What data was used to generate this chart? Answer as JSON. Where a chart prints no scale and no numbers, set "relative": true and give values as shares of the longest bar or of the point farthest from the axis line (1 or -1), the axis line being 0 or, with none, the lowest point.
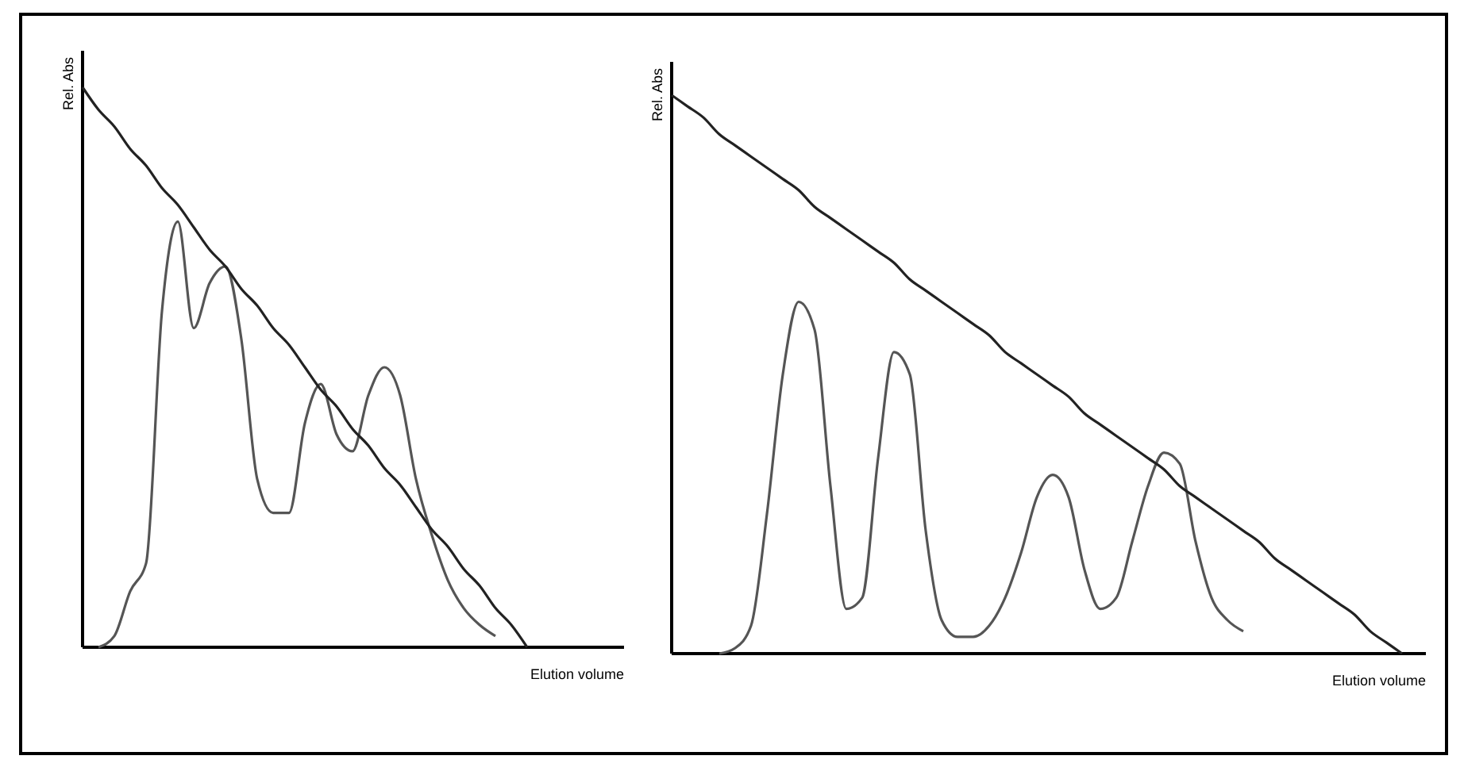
{
  "chart_data": [
    {
      "type": "line",
      "xlabel": "Elution volume",
      "ylabel": "Rel. Abs",
      "relative": true,
      "marker": "none",
      "line_style": "solid",
      "categories": [
        null,
        null,
        null,
        null,
        null,
        null,
        null,
        null,
        null,
        null,
        null,
        null,
        null,
        null,
        null,
        null,
        null,
        null,
        null,
        null,
        null,
        null,
        null,
        null,
        null,
        null,
        null,
        null,
        null,
        null,
        null,
        null,
        null,
        null,
        null
      ],
      "series": [
        {
          "color": "#555555",
          "values": [
            null,
            0,
            0.02,
            0.1,
            0.15,
            0.6,
            0.76,
            0.57,
            0.65,
            0.68,
            0.55,
            0.3,
            0.24,
            0.24,
            0.4,
            0.47,
            0.38,
            0.35,
            0.45,
            0.5,
            0.45,
            0.3,
            0.2,
            0.12,
            0.07,
            0.04,
            0.02,
            null,
            null,
            null,
            null,
            null,
            null,
            null,
            null
          ]
        },
        {
          "color": "#222222",
          "values": [
            1,
            0.96,
            0.93,
            0.89,
            0.86,
            0.82,
            0.79,
            0.75,
            0.71,
            0.68,
            0.64,
            0.61,
            0.57,
            0.54,
            0.5,
            0.46,
            0.43,
            0.39,
            0.36,
            0.32,
            0.29,
            0.25,
            0.21,
            0.18,
            0.14,
            0.11,
            0.07,
            0.04,
            0,
            null,
            null,
            null,
            null,
            null,
            null
          ]
        }
      ]
    },
    {
      "type": "line",
      "xlabel": "Elution volume",
      "ylabel": "Rel. Abs",
      "relative": true,
      "marker": "none",
      "line_style": "solid",
      "categories": [
        null,
        null,
        null,
        null,
        null,
        null,
        null,
        null,
        null,
        null,
        null,
        null,
        null,
        null,
        null,
        null,
        null,
        null,
        null,
        null,
        null,
        null,
        null,
        null,
        null,
        null,
        null,
        null,
        null,
        null,
        null,
        null,
        null,
        null,
        null,
        null,
        null,
        null,
        null,
        null,
        null,
        null,
        null,
        null,
        null,
        null,
        null,
        null
      ],
      "series": [
        {
          "color": "#555555",
          "values": [
            null,
            null,
            null,
            0,
            0.01,
            0.05,
            0.25,
            0.5,
            0.63,
            0.58,
            0.3,
            0.08,
            0.1,
            0.35,
            0.54,
            0.5,
            0.22,
            0.06,
            0.03,
            0.03,
            0.05,
            0.1,
            0.18,
            0.28,
            0.32,
            0.28,
            0.15,
            0.08,
            0.1,
            0.2,
            0.3,
            0.36,
            0.34,
            0.2,
            0.1,
            0.06,
            0.04,
            null,
            null,
            null,
            null,
            null,
            null,
            null,
            null,
            null,
            null,
            null
          ]
        },
        {
          "color": "#222222",
          "values": [
            1,
            0.98,
            0.96,
            0.93,
            0.91,
            0.89,
            0.87,
            0.85,
            0.83,
            0.8,
            0.78,
            0.76,
            0.74,
            0.72,
            0.7,
            0.67,
            0.65,
            0.63,
            0.61,
            0.59,
            0.57,
            0.54,
            0.52,
            0.5,
            0.48,
            0.46,
            0.43,
            0.41,
            0.39,
            0.37,
            0.35,
            0.33,
            0.3,
            0.28,
            0.26,
            0.24,
            0.22,
            0.2,
            0.17,
            0.15,
            0.13,
            0.11,
            0.09,
            0.07,
            0.04,
            0.02,
            0,
            null
          ]
        }
      ]
    }
  ]
}
